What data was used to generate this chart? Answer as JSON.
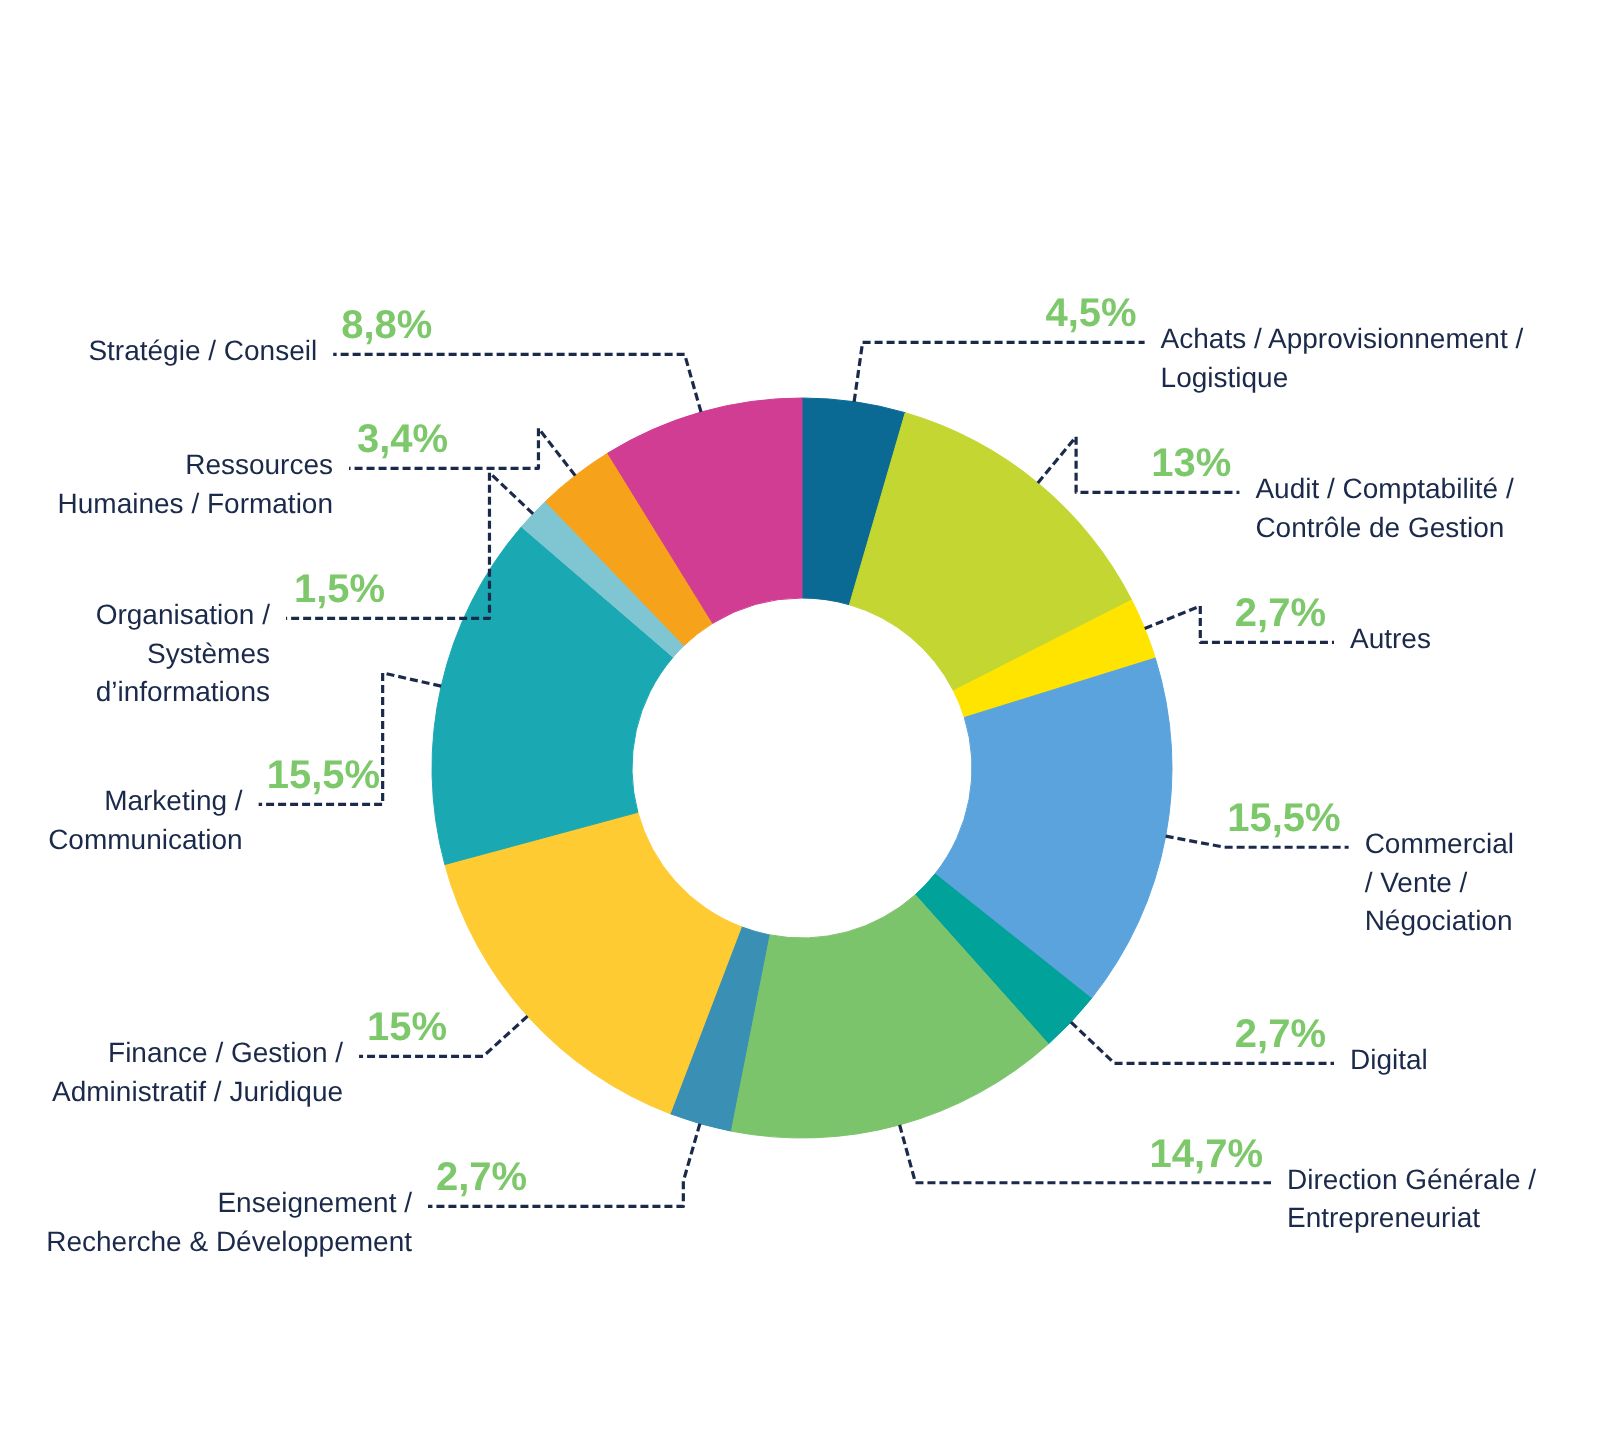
{
  "chart_data": {
    "type": "donut",
    "categories": [
      "Achats / Approvisionnement /\nLogistique",
      "Audit / Comptabilité /\nContrôle de Gestion",
      "Autres",
      "Commercial\n/ Vente /\nNégociation",
      "Digital",
      "Direction Générale /\nEntrepreneuriat",
      "Enseignement /\nRecherche & Développement",
      "Finance / Gestion /\nAdministratif / Juridique",
      "Marketing /\nCommunication",
      "Organisation /\nSystèmes\nd’informations",
      "Ressources\nHumaines / Formation",
      "Stratégie / Conseil"
    ],
    "values": [
      4.5,
      13,
      2.7,
      15.5,
      2.7,
      14.7,
      2.7,
      15,
      15.5,
      1.5,
      3.4,
      8.8
    ],
    "colors": [
      "#0b6a94",
      "#c3d631",
      "#ffe400",
      "#5aa3dc",
      "#00a29a",
      "#7cc46b",
      "#3a8fb5",
      "#ffcb32",
      "#1aa9b3",
      "#7fc6d2",
      "#f7a21b",
      "#d03d93"
    ],
    "value_labels": [
      "4,5%",
      "13%",
      "2,7%",
      "15,5%",
      "2,7%",
      "14,7%",
      "2,7%",
      "15%",
      "15,5%",
      "1,5%",
      "3,4%",
      "8,8%"
    ]
  }
}
